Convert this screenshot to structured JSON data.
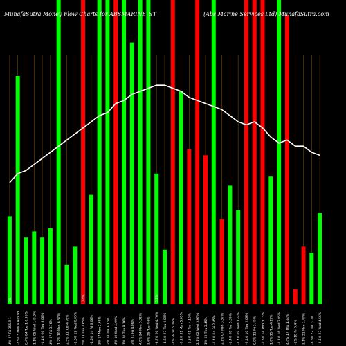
{
  "title_left": "MunafaSutra  Money Flow  Charts for ABSMARINE_ST",
  "title_right": "(Abs Marine Services Ltd) MunafaSutra.com",
  "chart_data": {
    "type": "bar",
    "title": "MunafaSutra  Money Flow  Charts for ABSMARINE_ST (Abs Marine Services Ltd) MunafaSutra.com",
    "colors": {
      "up": "#00ff00",
      "down": "#ff0000",
      "line": "#ffffff",
      "grid": "#7a4a00",
      "background": "#000000"
    },
    "categories": [
      "4% 27 Fri 356.9",
      "-2% 03 Mon 4 405.95",
      "0.4% 04 Tue 1 6.96",
      "1.1% 05 Wed 145.9",
      "-1.1% 06 Thu 8.06",
      "4% 07 Fri 3.76",
      "1.2% 10 Mon 6.37",
      "2.5% 11 Tue 4.76",
      "-1.6% 12 Wed 0.05",
      "5% 13 Thu 2.65",
      "-4.5% 14 Fri 6.06",
      "3% 17 Mon 2.68",
      "2% 18 Tue 4.16",
      "4% 19 Wed 4.99",
      "1% 20 Thu 9.16",
      "3% 21 Fri 4.06",
      "4.8% 24 Mon 5.32",
      "3.6% 25 Tue 4.6",
      "-3.7% 26 Wed 4.76",
      "-4.6% 27 Thu 0.09",
      "-2% 28 Fri 5.06",
      "-0.1% 31 Mon 5.65",
      "-1.5% 01 Tue 4.19",
      "2.1% 02 Wed 3.97",
      "1% 03 Thu 3.45",
      "-1.4% 04 Fri 2.45",
      "2.1% 07 Mon 3.37",
      "-1.4% 08 Tue 5.09",
      "-2.4% 09 Wed 1.44",
      "-2.4% 10 Thu 2.09",
      "0.9% 11 Fri 2.45",
      "-1.5% 14 Mon 3.15",
      "1.6% 15 Tue 4.19",
      "-1.1% 16 Wed 2.85",
      "4.4% 17 Thu 1.44",
      "-1% 18 Fri 5.4",
      "3.1% 21 Mon 1.47",
      "-3.6% 22 Tue 3.0",
      "-2.5% 23 Wed 4.56"
    ],
    "series": [
      {
        "values": [
          29,
          75,
          22,
          24,
          22,
          25,
          100,
          13,
          19,
          100,
          36,
          100,
          100,
          100,
          100,
          86,
          100,
          100,
          43,
          18,
          100,
          70,
          51,
          100,
          49,
          100,
          28,
          39,
          31,
          100,
          100,
          100,
          42,
          100,
          95,
          5,
          19,
          17,
          30
        ],
        "colors": [
          "up",
          "up",
          "up",
          "up",
          "up",
          "up",
          "up",
          "up",
          "up",
          "down",
          "up",
          "up",
          "up",
          "down",
          "up",
          "up",
          "up",
          "up",
          "up",
          "up",
          "down",
          "up",
          "down",
          "down",
          "down",
          "up",
          "down",
          "up",
          "up",
          "down",
          "down",
          "down",
          "up",
          "up",
          "down",
          "down",
          "down",
          "up",
          "up"
        ]
      }
    ],
    "extra_bars": {
      "values": [
        54,
        86,
        5,
        77,
        31,
        95,
        5
      ],
      "colors": [
        "up",
        "up",
        "up",
        "up",
        "down",
        "down",
        "down"
      ]
    },
    "line": [
      40,
      43,
      44,
      46,
      48,
      50,
      52,
      54,
      56,
      58,
      60,
      62,
      63,
      66,
      67,
      69,
      70,
      71,
      72,
      72,
      71,
      70,
      68,
      67,
      66,
      65,
      64,
      62,
      60,
      59,
      60,
      58,
      55,
      53,
      54,
      52,
      52,
      50,
      49
    ]
  },
  "x_labels": [
    "4% 27 Fri 356.9 1",
    "-2% 03 Mon 4 405.95",
    "0.4% 04 Tue 1 6.96%",
    "1.1% 05 Wed 145.9%",
    "-1.1% 06 Thu 8.06%",
    "4% 07 Fri 3.76%",
    "1.2% 10 Mon 6.37%",
    "2.5% 11 Tue 4.76%",
    "-1.6% 12 Wed 0.05%",
    "5% 13 Thu 2.65%",
    "-4.5% 14 Fri 6.06%",
    "3% 17 Mon 2.68%",
    "2% 18 Tue 4.16%",
    "4% 19 Wed 4.99%",
    "1% 20 Thu 9.16%",
    "3% 21 Fri 4.06%",
    "4.8% 24 Mon 5.32%",
    "3.6% 25 Tue 4.6%",
    "-3.7% 26 Wed 4.76%",
    "-4.6% 27 Thu 0.09%",
    "-2% 28 Fri 5.06%",
    "-0.1% 31 Mon 5.65%",
    "-1.5% 01 Tue 4.19%",
    "2.1% 02 Wed 3.97%",
    "1% 03 Thu 3.45%",
    "-1.4% 04 Fri 2.45%",
    "2.1% 07 Mon 3.37%",
    "-1.4% 08 Tue 5.09%",
    "-2.4% 09 Wed 1.44%",
    "-2.4% 10 Thu 2.09%",
    "0.9% 11 Fri 2.45%",
    "-1.5% 14 Mon 3.15%",
    "1.6% 15 Tue 4.19%",
    "-1.1% 16 Wed 2.85%",
    "4.4% 17 Thu 1.44%",
    "-1% 18 Fri 5.4%",
    "3.1% 21 Mon 1.47%",
    "-3.6% 22 Tue 3.0%",
    "-2.5% 23 Wed 4.56%"
  ],
  "marker_labels": [
    "0%",
    "0.4%",
    "0.1%"
  ]
}
